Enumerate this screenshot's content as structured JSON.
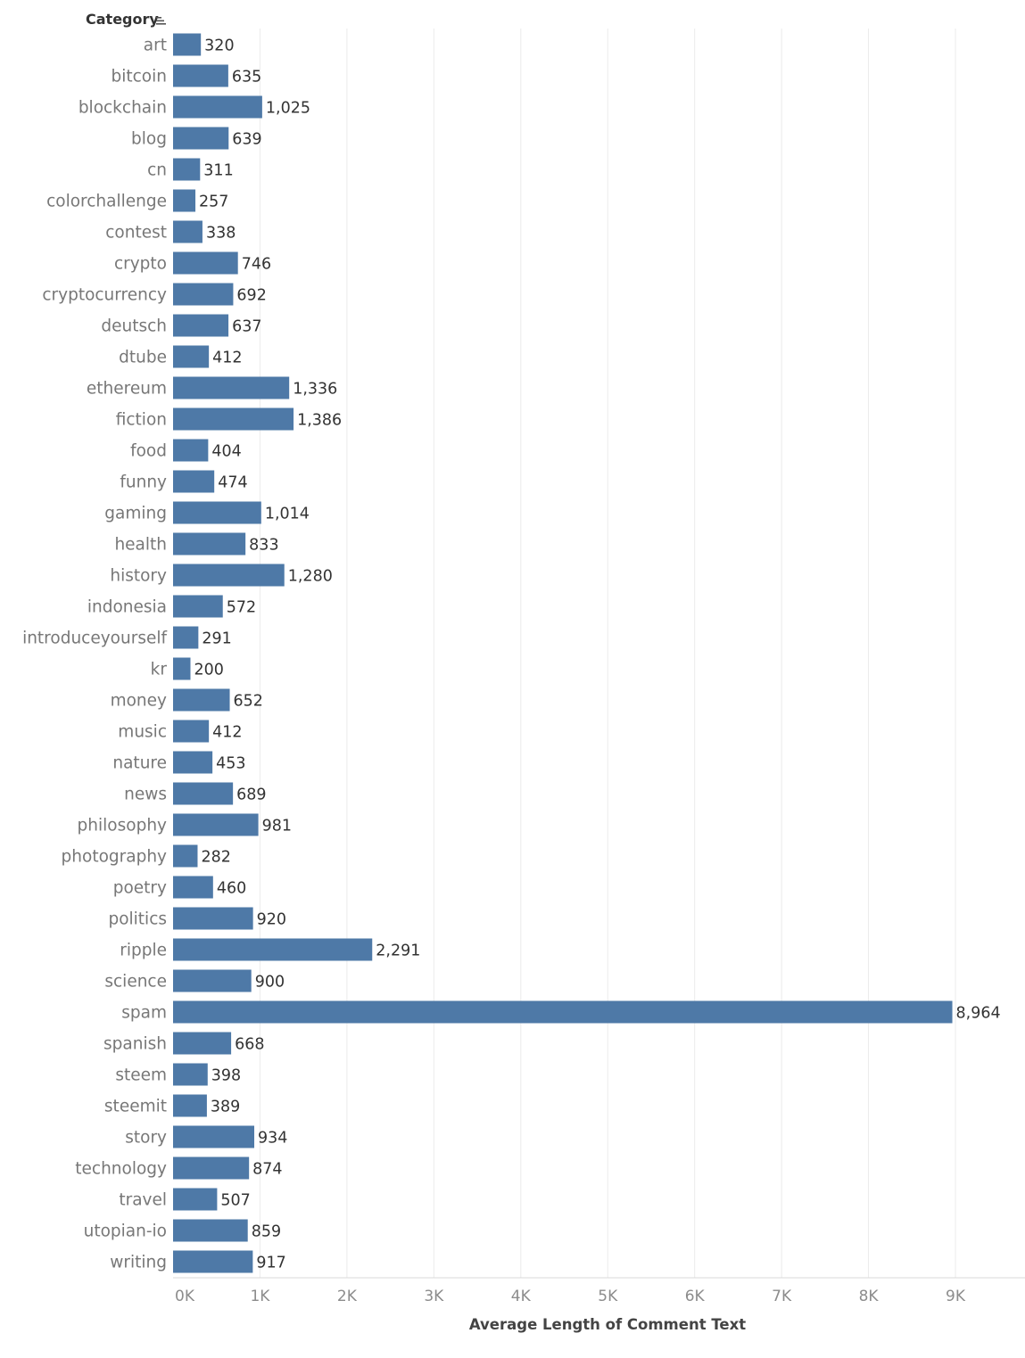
{
  "chart_data": {
    "type": "bar",
    "orientation": "horizontal",
    "header": "Category",
    "xlabel": "Average Length of Comment Text",
    "categories": [
      "art",
      "bitcoin",
      "blockchain",
      "blog",
      "cn",
      "colorchallenge",
      "contest",
      "crypto",
      "cryptocurrency",
      "deutsch",
      "dtube",
      "ethereum",
      "fiction",
      "food",
      "funny",
      "gaming",
      "health",
      "history",
      "indonesia",
      "introduceyourself",
      "kr",
      "money",
      "music",
      "nature",
      "news",
      "philosophy",
      "photography",
      "poetry",
      "politics",
      "ripple",
      "science",
      "spam",
      "spanish",
      "steem",
      "steemit",
      "story",
      "technology",
      "travel",
      "utopian-io",
      "writing"
    ],
    "values": [
      320,
      635,
      1025,
      639,
      311,
      257,
      338,
      746,
      692,
      637,
      412,
      1336,
      1386,
      404,
      474,
      1014,
      833,
      1280,
      572,
      291,
      200,
      652,
      412,
      453,
      689,
      981,
      282,
      460,
      920,
      2291,
      900,
      8964,
      668,
      398,
      389,
      934,
      874,
      507,
      859,
      917
    ],
    "value_labels": [
      "320",
      "635",
      "1,025",
      "639",
      "311",
      "257",
      "338",
      "746",
      "692",
      "637",
      "412",
      "1,336",
      "1,386",
      "404",
      "474",
      "1,014",
      "833",
      "1,280",
      "572",
      "291",
      "200",
      "652",
      "412",
      "453",
      "689",
      "981",
      "282",
      "460",
      "920",
      "2,291",
      "900",
      "8,964",
      "668",
      "398",
      "389",
      "934",
      "874",
      "507",
      "859",
      "917"
    ],
    "xticks": [
      0,
      1000,
      2000,
      3000,
      4000,
      5000,
      6000,
      7000,
      8000,
      9000
    ],
    "xtick_labels": [
      "0K",
      "1K",
      "2K",
      "3K",
      "4K",
      "5K",
      "6K",
      "7K",
      "8K",
      "9K"
    ],
    "xlim": [
      0,
      9800
    ],
    "grid": true,
    "bar_color": "#4e79a7",
    "sort_icon": "sort-descending-icon"
  }
}
